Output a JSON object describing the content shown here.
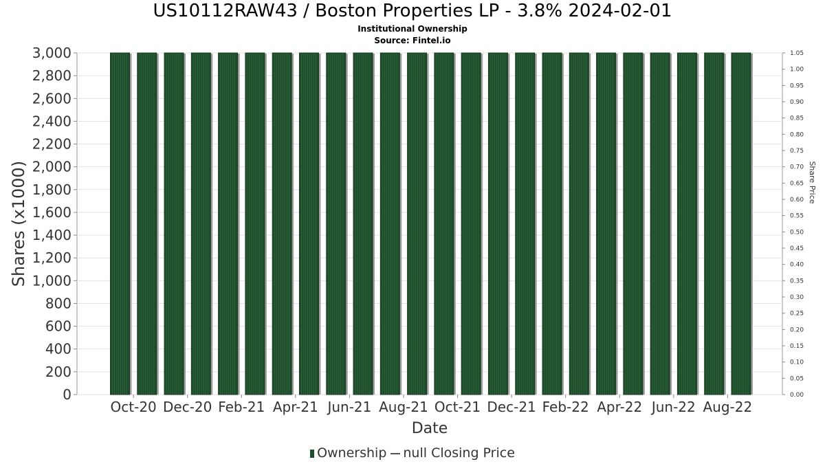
{
  "chart_data": {
    "type": "bar",
    "title": "US10112RAW43 / Boston Properties LP - 3.8% 2024-02-01",
    "subtitle": "Institutional Ownership",
    "source": "Source: Fintel.io",
    "xlabel": "Date",
    "ylabel": "Shares (x1000)",
    "y2label": "Share Price",
    "ylim": [
      0,
      3000
    ],
    "y2lim": [
      0,
      1.05
    ],
    "yticks": [
      "0",
      "200",
      "400",
      "600",
      "800",
      "1,000",
      "1,200",
      "1,400",
      "1,600",
      "1,800",
      "2,000",
      "2,200",
      "2,400",
      "2,600",
      "2,800",
      "3,000"
    ],
    "y2ticks": [
      "0.00",
      "0.05",
      "0.10",
      "0.15",
      "0.20",
      "0.25",
      "0.30",
      "0.35",
      "0.40",
      "0.45",
      "0.50",
      "0.55",
      "0.60",
      "0.65",
      "0.70",
      "0.75",
      "0.80",
      "0.85",
      "0.90",
      "0.95",
      "1.00",
      "1.05"
    ],
    "xticks": [
      "Oct-20",
      "Dec-20",
      "Feb-21",
      "Apr-21",
      "Jun-21",
      "Aug-21",
      "Oct-21",
      "Dec-21",
      "Feb-22",
      "Apr-22",
      "Jun-22",
      "Aug-22"
    ],
    "series": [
      {
        "name": "Ownership",
        "color": "#1e4d2b",
        "values": [
          3000,
          3000,
          3000,
          3000,
          3000,
          3000,
          3000,
          3000,
          3000,
          3000,
          3000,
          3000,
          3000,
          3000,
          3000,
          3000,
          3000,
          3000,
          3000,
          3000,
          3000,
          3000,
          3000,
          3000
        ]
      },
      {
        "name": "null Closing Price",
        "color": "#555555",
        "values": []
      }
    ],
    "grid": true,
    "legend_position": "bottom"
  }
}
